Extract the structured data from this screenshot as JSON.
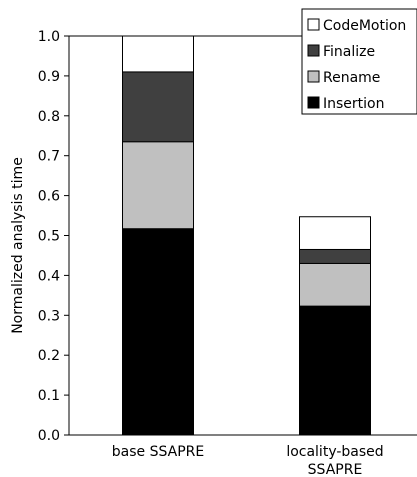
{
  "chart_data": {
    "type": "bar",
    "stacked": true,
    "ylabel": "Normalized analysis time",
    "xlabel": "",
    "ylim": [
      0,
      1.0
    ],
    "yticks": [
      "0.0",
      "0.1",
      "0.2",
      "0.3",
      "0.4",
      "0.5",
      "0.6",
      "0.7",
      "0.8",
      "0.9",
      "1.0"
    ],
    "categories": [
      "base SSAPRE",
      "locality-based SSAPRE"
    ],
    "category_lines": [
      [
        "base SSAPRE"
      ],
      [
        "locality-based",
        "SSAPRE"
      ]
    ],
    "series": [
      {
        "name": "Insertion",
        "color": "#000000",
        "values": [
          0.517,
          0.323
        ]
      },
      {
        "name": "Rename",
        "color": "#c0c0c0",
        "values": [
          0.218,
          0.107
        ]
      },
      {
        "name": "Finalize",
        "color": "#404040",
        "values": [
          0.175,
          0.035
        ]
      },
      {
        "name": "CodeMotion",
        "color": "#ffffff",
        "values": [
          0.09,
          0.082
        ]
      }
    ],
    "legend_order": [
      "CodeMotion",
      "Finalize",
      "Rename",
      "Insertion"
    ],
    "legend_position": "top-right",
    "grid": false
  }
}
